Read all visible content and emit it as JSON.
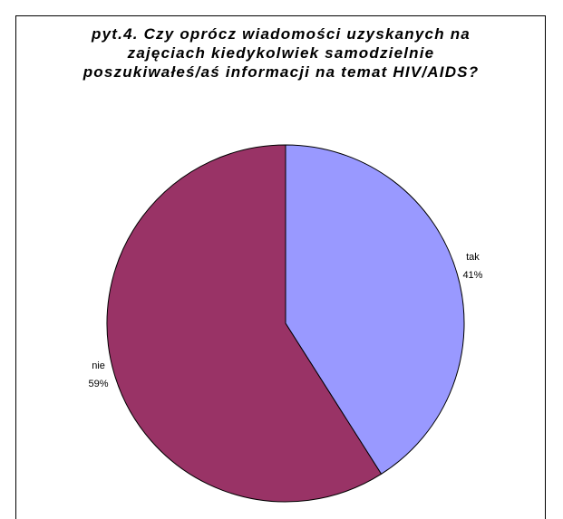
{
  "chart_data": {
    "type": "pie",
    "title": "pyt.4. Czy oprócz wiadomości uzyskanych na zajęciach kiedykolwiek samodzielnie poszukiwałeś/aś informacji na temat HIV/AIDS?",
    "categories": [
      "tak",
      "nie"
    ],
    "values": [
      41,
      59
    ],
    "value_labels": [
      "41%",
      "59%"
    ],
    "colors": [
      "#9999ff",
      "#993366"
    ]
  }
}
